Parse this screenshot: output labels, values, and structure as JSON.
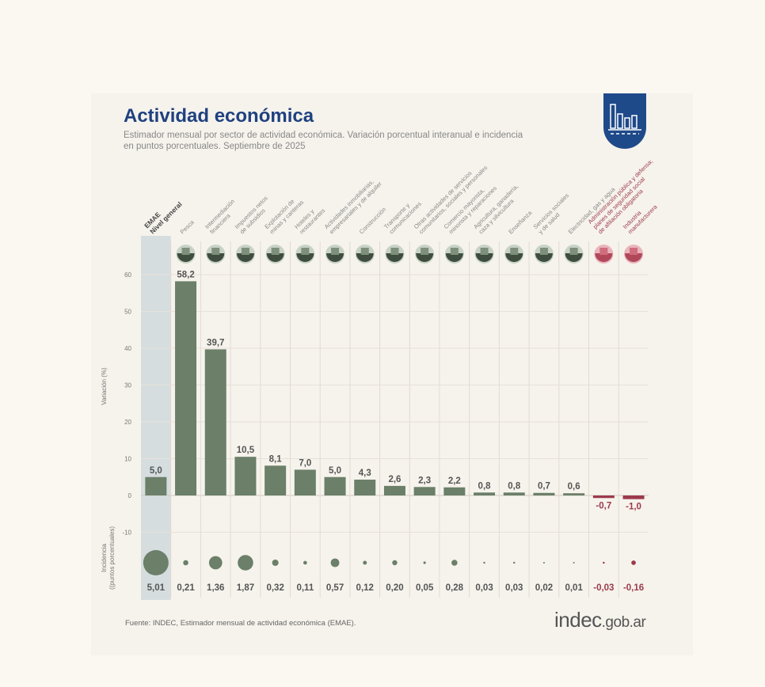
{
  "header": {
    "title": "Actividad económica",
    "subtitle": "Estimador mensual por sector de actividad económica. Variación porcentual interanual e incidencia en puntos porcentuales. Septiembre de 2025"
  },
  "footer": {
    "source": "Fuente: INDEC, Estimador mensual de actividad económica (EMAE).",
    "brand_main": "indec",
    "brand_suffix": ".gob.ar"
  },
  "colors": {
    "positive": "#6b7f69",
    "negative": "#9c3a4c",
    "highlight": "#c9d6da",
    "title": "#1f4180",
    "logo": "#1f4a8a"
  },
  "chart_data": {
    "type": "bar",
    "title": "Actividad económica",
    "ylabel": "Variación (%)",
    "ylabel2": "Incidencia (puntos porcentuales)",
    "ylim": [
      -10,
      60
    ],
    "yticks": [
      -10,
      0,
      10,
      20,
      30,
      40,
      50,
      60
    ],
    "categories": [
      [
        "EMAE",
        "Nivel general"
      ],
      [
        "Pesca"
      ],
      [
        "Intermediación",
        "financiera"
      ],
      [
        "Impuestos netos",
        "de subsidios"
      ],
      [
        "Explotación de",
        "minas y canteras"
      ],
      [
        "Hoteles y",
        "restaurantes"
      ],
      [
        "Actividades inmobiliarias,",
        "empresariales y de alquiler"
      ],
      [
        "Construcción"
      ],
      [
        "Transporte y",
        "comunicaciones"
      ],
      [
        "Otras actividades de servicios",
        "comunitarios, sociales y personales"
      ],
      [
        "Comercio mayorista,",
        "minorista y reparaciones"
      ],
      [
        "Agricultura, ganadería,",
        "caza y silvicultura"
      ],
      [
        "Enseñanza"
      ],
      [
        "Servicios sociales",
        "y de salud"
      ],
      [
        "Electricidad, gas y agua"
      ],
      [
        "Administración pública y defensa;",
        "planes de seguridad social",
        "de afiliación obligatoria"
      ],
      [
        "Industria",
        "manufacturera"
      ]
    ],
    "values": [
      5.0,
      58.2,
      39.7,
      10.5,
      8.1,
      7.0,
      5.0,
      4.3,
      2.6,
      2.3,
      2.2,
      0.8,
      0.8,
      0.7,
      0.6,
      -0.7,
      -1.0
    ],
    "value_labels": [
      "5,0",
      "58,2",
      "39,7",
      "10,5",
      "8,1",
      "7,0",
      "5,0",
      "4,3",
      "2,6",
      "2,3",
      "2,2",
      "0,8",
      "0,8",
      "0,7",
      "0,6",
      "-0,7",
      "-1,0"
    ],
    "incidence": [
      5.01,
      0.21,
      1.36,
      1.87,
      0.32,
      0.11,
      0.57,
      0.12,
      0.2,
      0.05,
      0.28,
      0.03,
      0.03,
      0.02,
      0.01,
      -0.03,
      -0.16
    ],
    "incidence_labels": [
      "5,01",
      "0,21",
      "1,36",
      "1,87",
      "0,32",
      "0,11",
      "0,57",
      "0,12",
      "0,20",
      "0,05",
      "0,28",
      "0,03",
      "0,03",
      "0,02",
      "0,01",
      "-0,03",
      "-0,16"
    ],
    "icons": [
      "",
      "fishing-icon",
      "bank-icon",
      "tax-icon",
      "oil-pump-icon",
      "hotel-icon",
      "real-estate-icon",
      "construction-icon",
      "telecom-icon",
      "theater-icon",
      "commerce-icon",
      "agriculture-icon",
      "education-icon",
      "health-icon",
      "electricity-icon",
      "government-icon",
      "industry-gears-icon"
    ]
  }
}
